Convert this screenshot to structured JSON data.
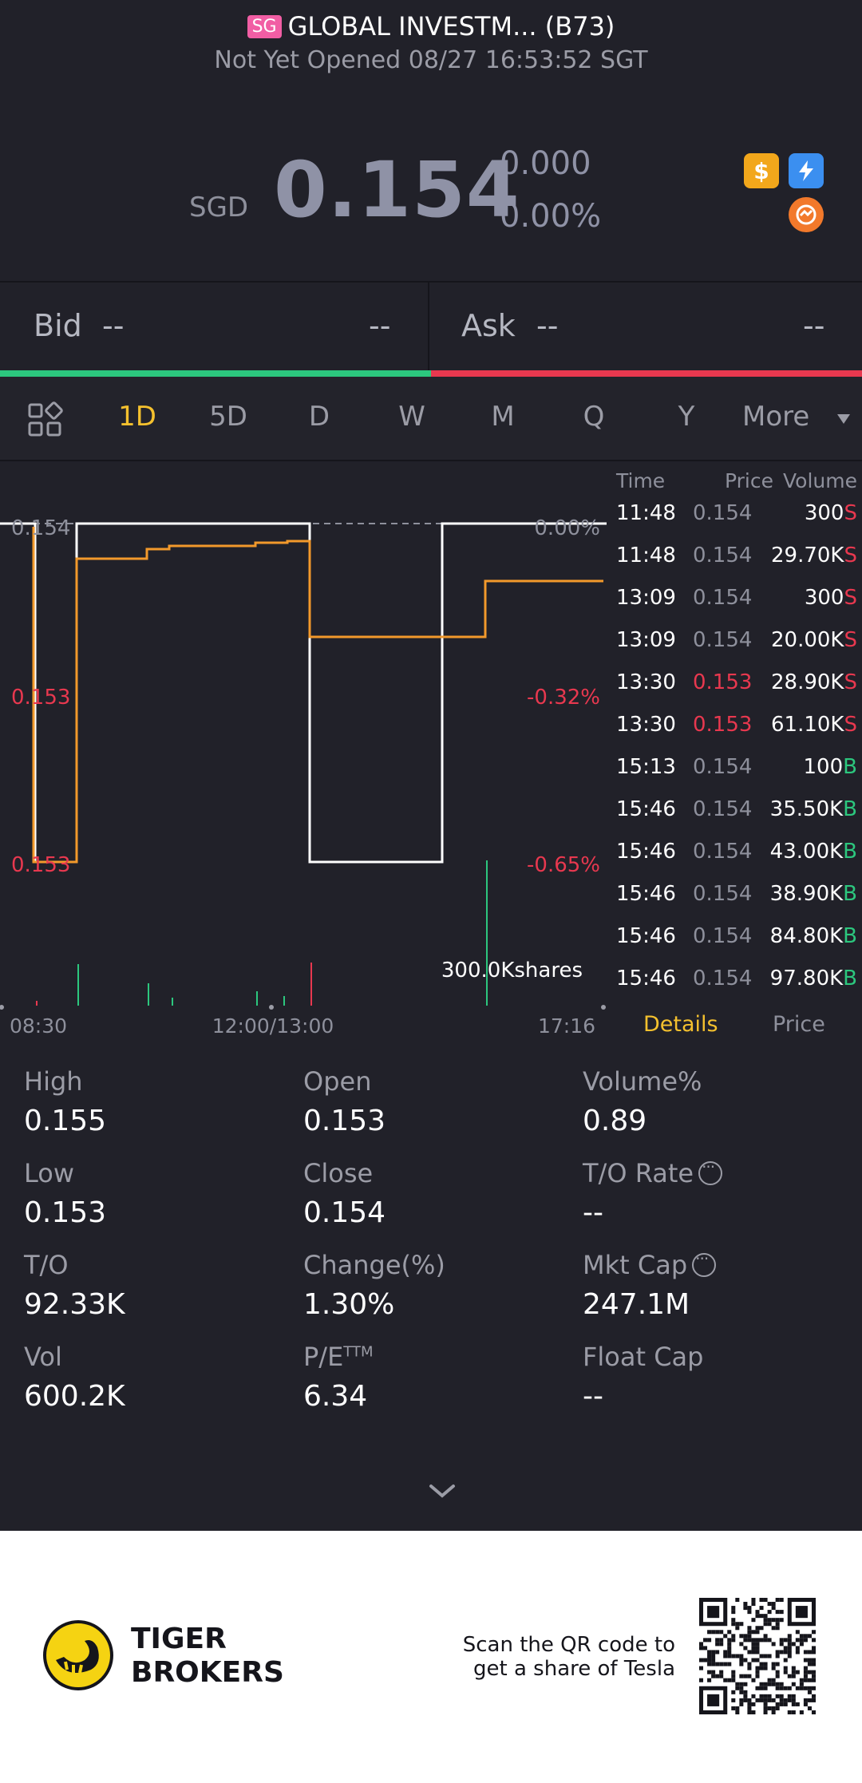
{
  "header": {
    "market_badge": "SG",
    "title": "GLOBAL INVESTM... (B73)",
    "status": "Not Yet Opened 08/27 16:53:52 SGT"
  },
  "quote": {
    "currency": "SGD",
    "price": "0.154",
    "change": "0.000",
    "change_pct": "0.00%",
    "icons": [
      "dollar-icon",
      "flash-icon",
      "swap-icon"
    ]
  },
  "bid_ask": {
    "bid_label": "Bid",
    "bid_price": "--",
    "bid_size": "--",
    "ask_label": "Ask",
    "ask_price": "--",
    "ask_size": "--"
  },
  "tabs": [
    "1D",
    "5D",
    "D",
    "W",
    "M",
    "Q",
    "Y",
    "More"
  ],
  "active_tab": "1D",
  "chart": {
    "price_labels": [
      "0.154",
      "0.153",
      "0.153"
    ],
    "pct_labels": [
      "0.00%",
      "-0.32%",
      "-0.65%"
    ],
    "volume_label": "300.0Kshares",
    "x_labels": [
      "08:30",
      "12:00/13:00",
      "17:16"
    ]
  },
  "ticks": {
    "headers": {
      "time": "Time",
      "price": "Price",
      "volume": "Volume"
    },
    "rows": [
      {
        "time": "11:48",
        "price": "0.154",
        "volume": "300",
        "side": "S",
        "color": "#8e909c"
      },
      {
        "time": "11:48",
        "price": "0.154",
        "volume": "29.70K",
        "side": "S",
        "color": "#8e909c"
      },
      {
        "time": "13:09",
        "price": "0.154",
        "volume": "300",
        "side": "S",
        "color": "#8e909c"
      },
      {
        "time": "13:09",
        "price": "0.154",
        "volume": "20.00K",
        "side": "S",
        "color": "#8e909c"
      },
      {
        "time": "13:30",
        "price": "0.153",
        "volume": "28.90K",
        "side": "S",
        "color": "#e8384f"
      },
      {
        "time": "13:30",
        "price": "0.153",
        "volume": "61.10K",
        "side": "S",
        "color": "#e8384f"
      },
      {
        "time": "15:13",
        "price": "0.154",
        "volume": "100",
        "side": "B",
        "color": "#8e909c"
      },
      {
        "time": "15:46",
        "price": "0.154",
        "volume": "35.50K",
        "side": "B",
        "color": "#8e909c"
      },
      {
        "time": "15:46",
        "price": "0.154",
        "volume": "43.00K",
        "side": "B",
        "color": "#8e909c"
      },
      {
        "time": "15:46",
        "price": "0.154",
        "volume": "38.90K",
        "side": "B",
        "color": "#8e909c"
      },
      {
        "time": "15:46",
        "price": "0.154",
        "volume": "84.80K",
        "side": "B",
        "color": "#8e909c"
      },
      {
        "time": "15:46",
        "price": "0.154",
        "volume": "97.80K",
        "side": "B",
        "color": "#8e909c"
      }
    ],
    "details_tab": "Details",
    "price_tab": "Price"
  },
  "stats": [
    {
      "label": "High",
      "value": "0.155",
      "info": false
    },
    {
      "label": "Open",
      "value": "0.153",
      "info": false
    },
    {
      "label": "Volume%",
      "value": "0.89",
      "info": false
    },
    {
      "label": "Low",
      "value": "0.153",
      "info": false
    },
    {
      "label": "Close",
      "value": "0.154",
      "info": false
    },
    {
      "label": "T/O Rate",
      "value": "--",
      "info": true
    },
    {
      "label": "T/O",
      "value": "92.33K",
      "info": false
    },
    {
      "label": "Change(%)",
      "value": "1.30%",
      "info": false
    },
    {
      "label": "Mkt Cap",
      "value": "247.1M",
      "info": true
    },
    {
      "label": "Vol",
      "value": "600.2K",
      "info": false
    },
    {
      "label": "P/E",
      "value": "6.34",
      "info": false,
      "sup": "TTM"
    },
    {
      "label": "Float Cap",
      "value": "--",
      "info": false
    }
  ],
  "footer": {
    "brand_line1": "TIGER",
    "brand_line2": "BROKERS",
    "scan_line1": "Scan the QR code to",
    "scan_line2": "get a share of Tesla"
  },
  "colors": {
    "accent": "#f5c12e",
    "up": "#2cc77e",
    "down": "#e8384f",
    "line": "#f2992b"
  }
}
